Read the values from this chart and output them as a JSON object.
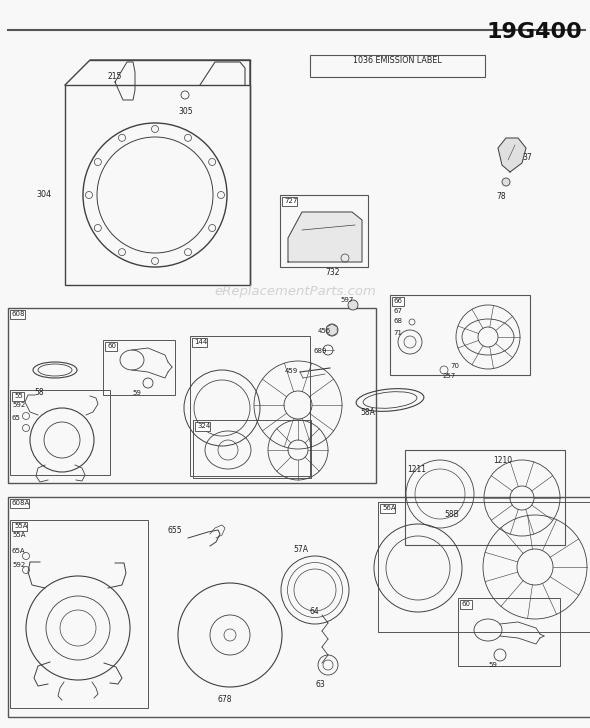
{
  "title": "19G400",
  "bg_color": "#f8f8f8",
  "watermark": "eReplacementParts.com",
  "emission_label": "1036 EMISSION LABEL",
  "figsize": [
    5.9,
    7.28
  ],
  "dpi": 100,
  "line_color": "#404040",
  "label_color": "#222222",
  "lfs": 5.5,
  "title_fs": 16
}
